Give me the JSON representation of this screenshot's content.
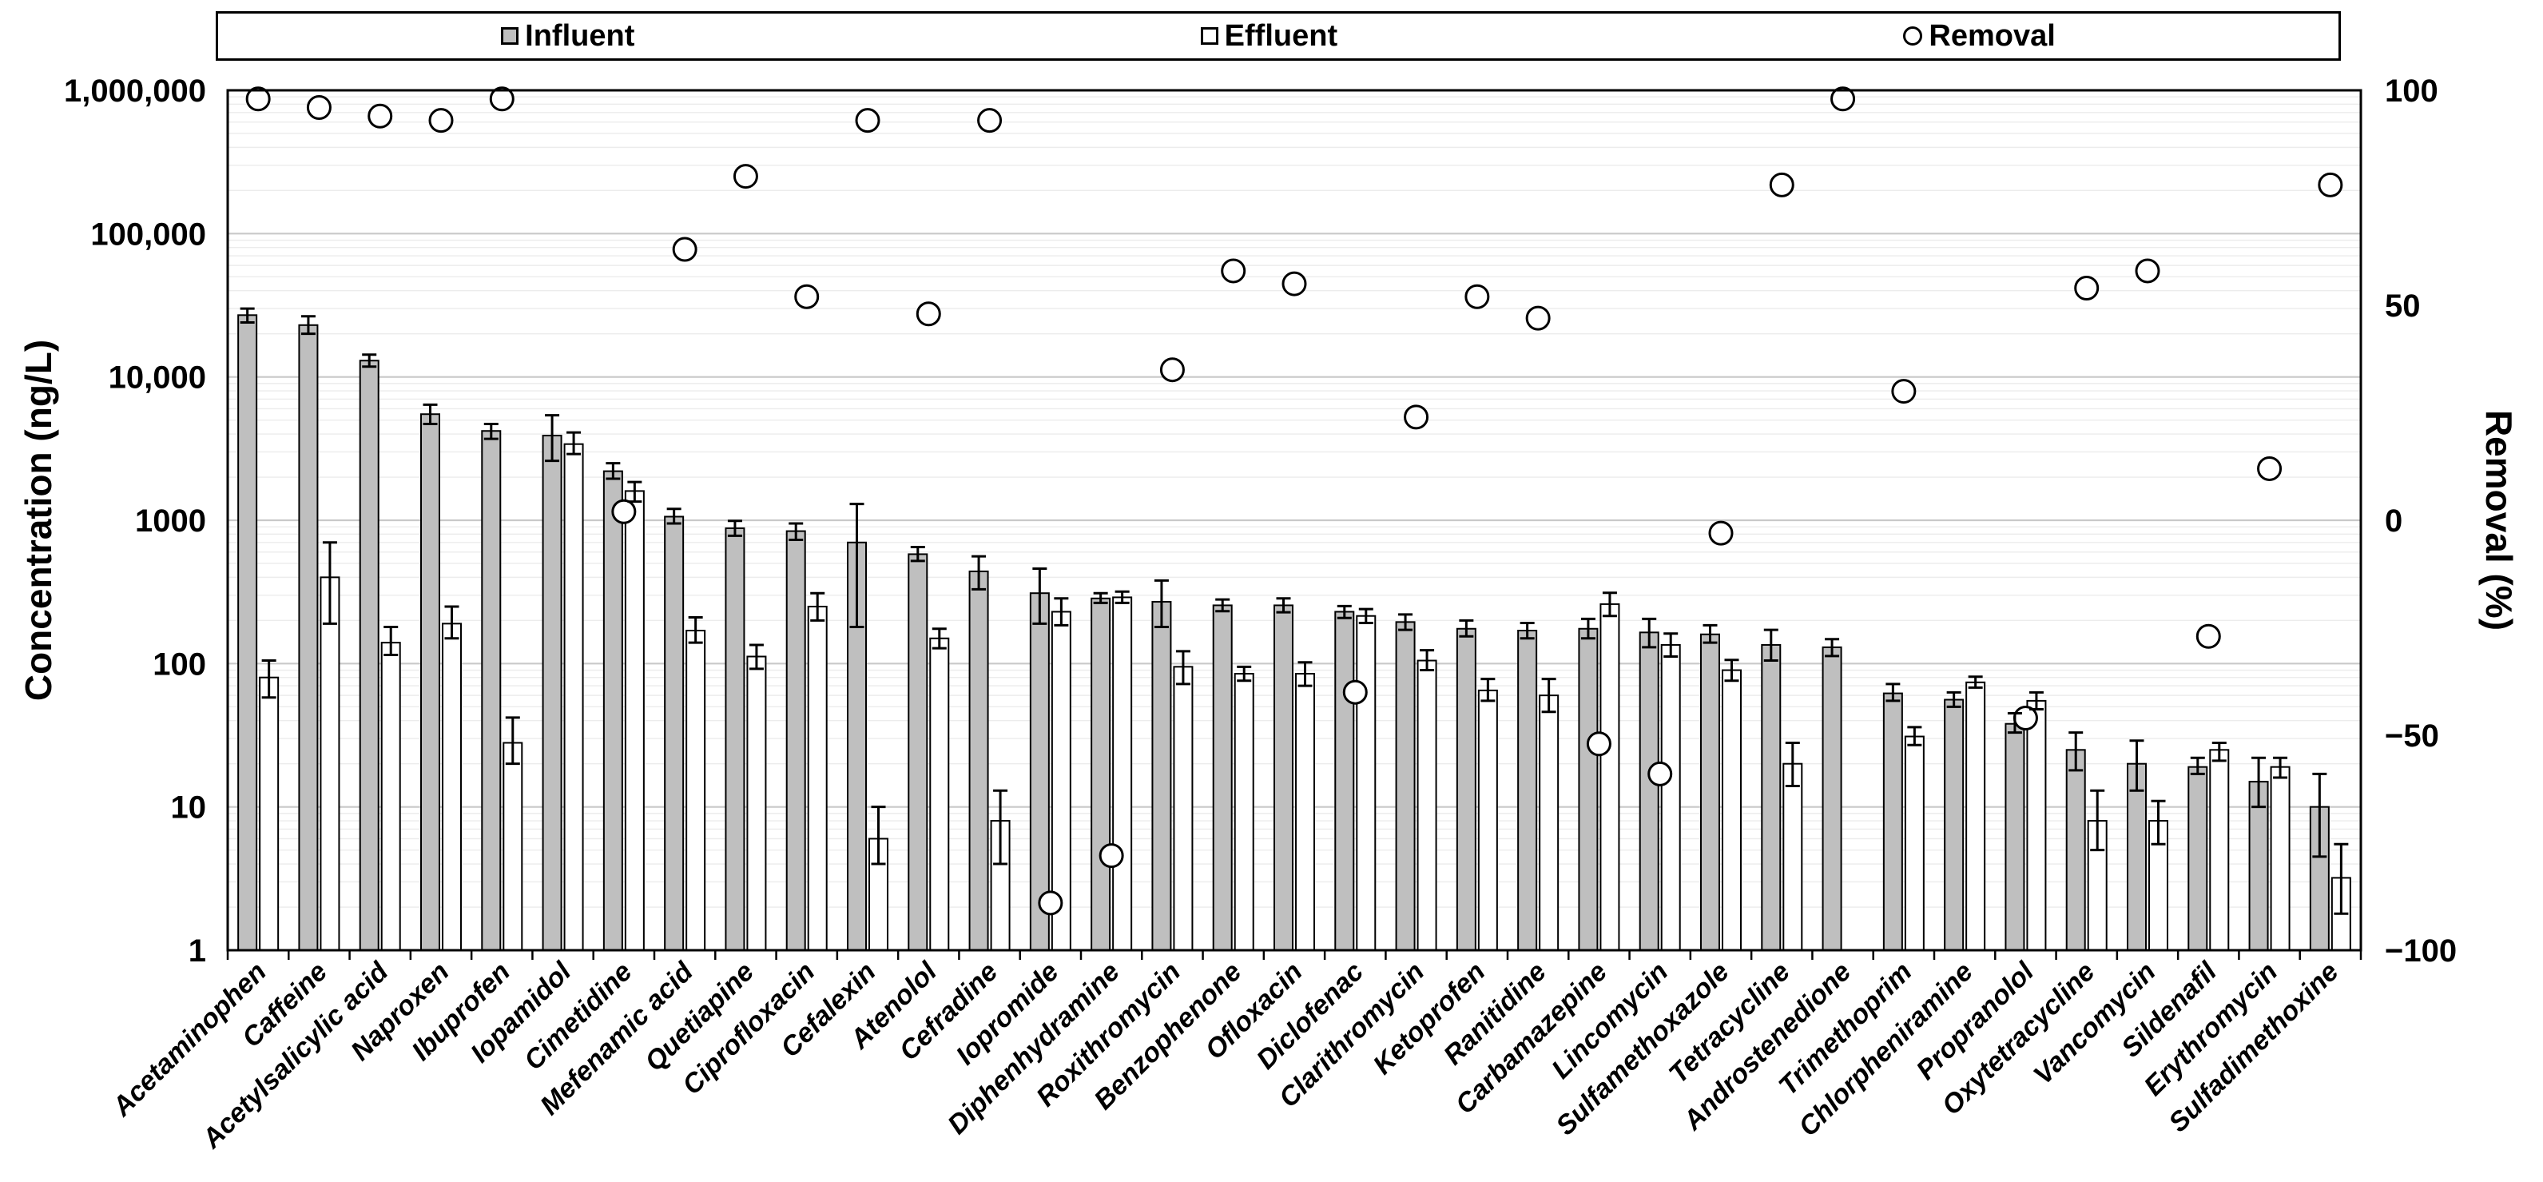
{
  "legend": {
    "items": [
      {
        "label": "Influent",
        "swatch": "filled-square"
      },
      {
        "label": "Effluent",
        "swatch": "open-square"
      },
      {
        "label": "Removal",
        "swatch": "open-circle"
      }
    ]
  },
  "chart_data": {
    "type": "bar",
    "subtype": "log-bars-with-removal-scatter",
    "title": "",
    "categories": [
      "Acetaminophen",
      "Caffeine",
      "Acetylsalicylic acid",
      "Naproxen",
      "Ibuprofen",
      "Iopamidol",
      "Cimetidine",
      "Mefenamic acid",
      "Quetiapine",
      "Ciprofloxacin",
      "Cefalexin",
      "Atenolol",
      "Cefradine",
      "Iopromide",
      "Diphenhydramine",
      "Roxithromycin",
      "Benzophenone",
      "Ofloxacin",
      "Diclofenac",
      "Clarithromycin",
      "Ketoprofen",
      "Ranitidine",
      "Carbamazepine",
      "Lincomycin",
      "Sulfamethoxazole",
      "Tetracycline",
      "Androstenedione",
      "Trimethoprim",
      "Chlorpheniramine",
      "Propranolol",
      "Oxytetracycline",
      "Vancomycin",
      "Sildenafil",
      "Erythromycin",
      "Sulfadimethoxine"
    ],
    "series": [
      {
        "name": "Influent",
        "type": "bar",
        "axis": "left",
        "color": "#bfbfbf",
        "values": [
          27000,
          23000,
          13000,
          5500,
          4200,
          3900,
          2200,
          1060,
          880,
          840,
          700,
          580,
          440,
          310,
          285,
          270,
          255,
          255,
          230,
          195,
          175,
          170,
          175,
          165,
          160,
          135,
          130,
          62,
          56,
          38,
          25,
          20,
          19,
          15,
          10
        ],
        "error_low": [
          24000,
          20000,
          11800,
          4700,
          3700,
          2600,
          1950,
          950,
          780,
          730,
          180,
          520,
          330,
          190,
          265,
          180,
          232,
          228,
          208,
          172,
          155,
          150,
          150,
          130,
          140,
          105,
          113,
          55,
          50,
          33,
          18,
          13,
          17,
          10,
          4.5
        ],
        "error_high": [
          30000,
          26500,
          14300,
          6400,
          4700,
          5400,
          2500,
          1200,
          990,
          950,
          1300,
          650,
          560,
          460,
          310,
          380,
          280,
          285,
          252,
          220,
          200,
          192,
          205,
          205,
          185,
          172,
          148,
          72,
          63,
          45,
          33,
          29,
          22,
          22,
          17
        ]
      },
      {
        "name": "Effluent",
        "type": "bar",
        "axis": "left",
        "color": "#ffffff",
        "values": [
          80,
          400,
          140,
          190,
          28,
          3400,
          1600,
          170,
          112,
          250,
          6,
          150,
          8,
          230,
          290,
          95,
          85,
          85,
          215,
          105,
          65,
          60,
          260,
          135,
          90,
          20,
          null,
          31,
          74,
          55,
          8,
          8,
          25,
          19,
          3.2
        ],
        "error_low": [
          58,
          190,
          115,
          150,
          20,
          2900,
          1350,
          140,
          92,
          200,
          4,
          128,
          4,
          185,
          265,
          72,
          76,
          70,
          192,
          90,
          55,
          46,
          215,
          112,
          76,
          14,
          null,
          27,
          68,
          48,
          5,
          5.5,
          21,
          16,
          1.8
        ],
        "error_high": [
          105,
          700,
          180,
          250,
          42,
          4100,
          1850,
          210,
          135,
          310,
          10,
          175,
          13,
          285,
          318,
          122,
          95,
          102,
          240,
          124,
          78,
          78,
          312,
          162,
          106,
          28,
          null,
          36,
          81,
          63,
          13,
          11,
          28,
          22,
          5.5
        ]
      },
      {
        "name": "Removal",
        "type": "scatter",
        "axis": "right",
        "marker": "open-circle",
        "values": [
          98,
          96,
          94,
          93,
          98,
          null,
          2,
          63,
          80,
          52,
          93,
          48,
          93,
          -89,
          -78,
          35,
          58,
          55,
          -40,
          24,
          52,
          47,
          -52,
          -59,
          -3,
          78,
          98,
          30,
          null,
          -46,
          54,
          58,
          -27,
          12,
          78
        ]
      }
    ],
    "y_axis": {
      "label": "Concentration (ng/L)",
      "scale": "log",
      "min": 1,
      "max": 1000000,
      "ticks": [
        {
          "label": "1,000,000",
          "value": 1000000
        },
        {
          "label": "100,000",
          "value": 100000
        },
        {
          "label": "10,000",
          "value": 10000
        },
        {
          "label": "1000",
          "value": 1000
        },
        {
          "label": "100",
          "value": 100
        },
        {
          "label": "10",
          "value": 10
        },
        {
          "label": "1",
          "value": 1
        }
      ]
    },
    "y2_axis": {
      "label": "Removal (%)",
      "scale": "linear",
      "min": -100,
      "max": 100,
      "ticks": [
        {
          "label": "100",
          "value": 100
        },
        {
          "label": "50",
          "value": 50
        },
        {
          "label": "0",
          "value": 0
        },
        {
          "label": "−50",
          "value": -50
        },
        {
          "label": "−100",
          "value": -100
        }
      ]
    },
    "grid": "horizontal log minor gridlines on",
    "legend_position": "top"
  }
}
